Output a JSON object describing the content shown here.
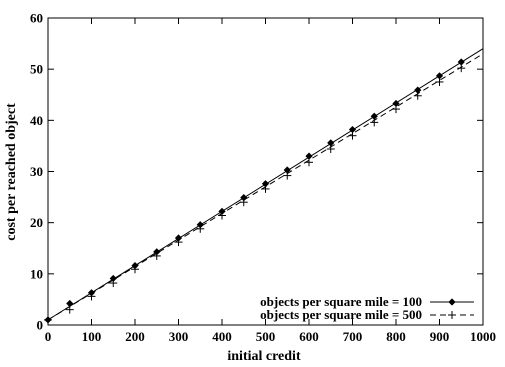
{
  "chart_data": {
    "type": "line",
    "title": "",
    "xlabel": "initial credit",
    "ylabel": "cost per reached object",
    "xlim": [
      0,
      1000
    ],
    "ylim": [
      0,
      60
    ],
    "xticks": [
      0,
      100,
      200,
      300,
      400,
      500,
      600,
      700,
      800,
      900,
      1000
    ],
    "yticks": [
      0,
      10,
      20,
      30,
      40,
      50,
      60
    ],
    "grid": false,
    "legend_position": "bottom-right",
    "series": [
      {
        "name": "objects per square mile = 100",
        "line_style": "solid",
        "marker": "diamond",
        "color": "#000000",
        "line_x": [
          0,
          1000
        ],
        "line_y": [
          1.0,
          54.0
        ],
        "x": [
          0,
          50,
          100,
          150,
          200,
          250,
          300,
          350,
          400,
          450,
          500,
          550,
          600,
          650,
          700,
          750,
          800,
          850,
          900,
          950
        ],
        "y": [
          1.0,
          4.2,
          6.3,
          9.1,
          11.6,
          14.3,
          17.0,
          19.6,
          22.2,
          24.9,
          27.6,
          30.3,
          33.0,
          35.6,
          38.2,
          40.8,
          43.3,
          45.9,
          48.7,
          51.4
        ]
      },
      {
        "name": "objects per square mile = 500",
        "line_style": "dashed",
        "marker": "plus",
        "color": "#000000",
        "line_x": [
          0,
          1000
        ],
        "line_y": [
          1.0,
          53.0
        ],
        "x": [
          0,
          50,
          100,
          150,
          200,
          250,
          300,
          350,
          400,
          450,
          500,
          550,
          600,
          650,
          700,
          750,
          800,
          850,
          900,
          950
        ],
        "y": [
          1.0,
          3.0,
          5.6,
          8.2,
          10.9,
          13.5,
          16.2,
          18.8,
          21.4,
          24.0,
          26.6,
          29.2,
          31.8,
          34.4,
          37.0,
          39.6,
          42.2,
          44.8,
          47.5,
          50.2
        ]
      }
    ]
  }
}
